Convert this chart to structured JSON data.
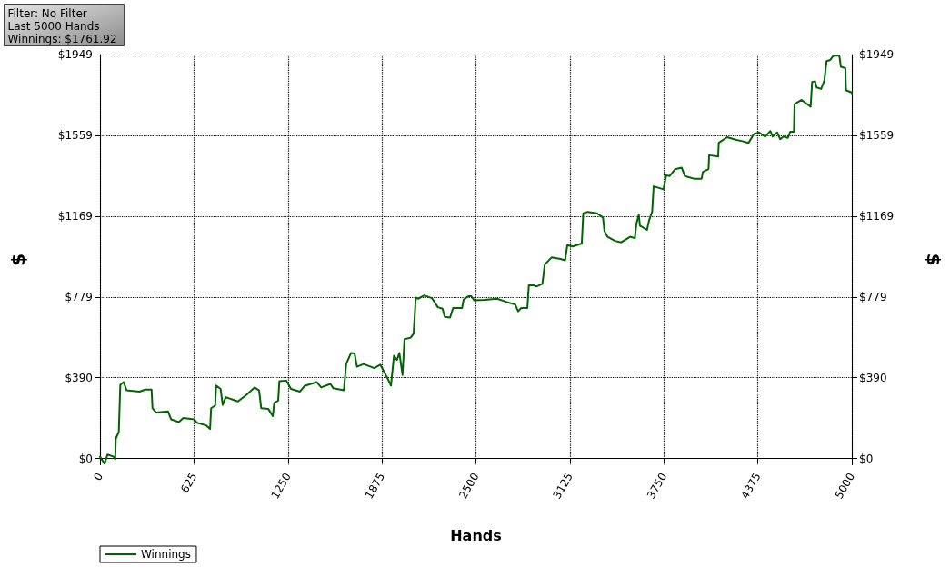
{
  "chart_data": {
    "type": "line",
    "xlabel": "Hands",
    "ylabel": "$",
    "y2label": "$",
    "annotations": [
      "Filter: No Filter",
      "Last 5000 Hands",
      "Winnings: $1761.92"
    ],
    "x": [
      0,
      30,
      50,
      91,
      101,
      105,
      125,
      135,
      157,
      177,
      262,
      302,
      343,
      349,
      373,
      453,
      473,
      524,
      554,
      625,
      645,
      706,
      732,
      739,
      766,
      772,
      802,
      816,
      836,
      917,
      967,
      1028,
      1058,
      1072,
      1119,
      1149,
      1159,
      1185,
      1193,
      1239,
      1270,
      1330,
      1360,
      1441,
      1471,
      1532,
      1552,
      1622,
      1637,
      1669,
      1693,
      1709,
      1753,
      1824,
      1864,
      1915,
      1935,
      1955,
      1975,
      1991,
      2012,
      2025,
      2066,
      2086,
      2100,
      2116,
      2157,
      2207,
      2247,
      2278,
      2293,
      2328,
      2348,
      2408,
      2418,
      2449,
      2469,
      2489,
      2559,
      2640,
      2701,
      2761,
      2781,
      2801,
      2842,
      2852,
      2882,
      2902,
      2942,
      2958,
      3003,
      3063,
      3093,
      3108,
      3144,
      3204,
      3214,
      3244,
      3305,
      3345,
      3355,
      3375,
      3426,
      3466,
      3526,
      3557,
      3567,
      3583,
      3591,
      3638,
      3652,
      3672,
      3682,
      3728,
      3748,
      3765,
      3789,
      3825,
      3869,
      3889,
      3950,
      4001,
      4010,
      4047,
      4051,
      4111,
      4115,
      4171,
      4232,
      4273,
      4313,
      4349,
      4383,
      4424,
      4458,
      4474,
      4504,
      4524,
      4545,
      4575,
      4590,
      4615,
      4619,
      4666,
      4726,
      4736,
      4756,
      4766,
      4796,
      4817,
      4832,
      4857,
      4877,
      4917,
      4927,
      4957,
      4961,
      4998,
      5000
    ],
    "series": [
      {
        "name": "Winnings",
        "color": "#006400",
        "values": [
          9,
          -24,
          19,
          9,
          -4,
          96,
          129,
          356,
          369,
          329,
          323,
          333,
          333,
          243,
          222,
          227,
          189,
          176,
          196,
          189,
          173,
          160,
          143,
          243,
          256,
          352,
          336,
          259,
          296,
          276,
          303,
          343,
          329,
          243,
          240,
          205,
          269,
          280,
          373,
          376,
          336,
          323,
          350,
          369,
          343,
          360,
          339,
          329,
          456,
          509,
          507,
          443,
          456,
          436,
          453,
          383,
          352,
          496,
          476,
          509,
          403,
          576,
          583,
          603,
          776,
          771,
          787,
          774,
          730,
          723,
          683,
          680,
          726,
          726,
          766,
          783,
          783,
          763,
          766,
          771,
          756,
          743,
          710,
          726,
          726,
          836,
          836,
          830,
          843,
          936,
          970,
          963,
          956,
          1030,
          1023,
          1037,
          1183,
          1190,
          1183,
          1163,
          1097,
          1070,
          1050,
          1043,
          1070,
          1063,
          1130,
          1177,
          1123,
          1103,
          1150,
          1190,
          1313,
          1303,
          1299,
          1366,
          1363,
          1396,
          1403,
          1363,
          1350,
          1350,
          1383,
          1396,
          1463,
          1457,
          1523,
          1550,
          1537,
          1531,
          1523,
          1566,
          1573,
          1553,
          1580,
          1553,
          1573,
          1540,
          1553,
          1547,
          1576,
          1576,
          1710,
          1730,
          1697,
          1817,
          1820,
          1790,
          1783,
          1823,
          1917,
          1923,
          1943,
          1943,
          1890,
          1883,
          1777,
          1766,
          1762
        ]
      }
    ],
    "xlim": [
      0,
      5000
    ],
    "xticks": [
      0,
      625,
      1250,
      1875,
      2500,
      3125,
      3750,
      4375,
      5000
    ],
    "ylim": [
      -30,
      1949
    ],
    "yticks": [
      {
        "value": 0,
        "label": "$0"
      },
      {
        "value": 390,
        "label": "$390"
      },
      {
        "value": 779,
        "label": "$779"
      },
      {
        "value": 1169,
        "label": "$1169"
      },
      {
        "value": 1559,
        "label": "$1559"
      },
      {
        "value": 1949,
        "label": "$1949"
      }
    ],
    "y2lim": [
      -30,
      1949
    ],
    "y2ticks": [
      {
        "value": 0,
        "label": "$0"
      },
      {
        "value": 390,
        "label": "$390"
      },
      {
        "value": 779,
        "label": "$779"
      },
      {
        "value": 1169,
        "label": "$1169"
      },
      {
        "value": 1559,
        "label": "$1559"
      },
      {
        "value": 1949,
        "label": "$1949"
      }
    ],
    "grid": true,
    "legend": "bottom left",
    "marker": "none",
    "line_style": "solid"
  }
}
